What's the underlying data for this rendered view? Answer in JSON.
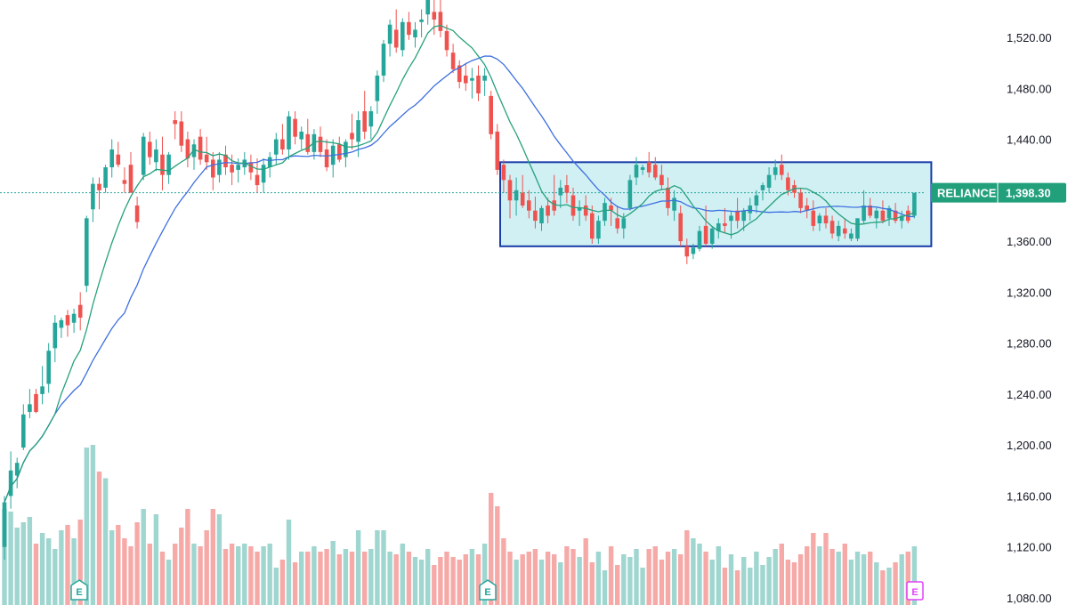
{
  "colors": {
    "up": "#26a69a",
    "down": "#ef5350",
    "vol_up": "#9fd6d0",
    "vol_down": "#f6aaa8",
    "ma_fast": "#26a17b",
    "ma_slow": "#3d6fe0",
    "box_fill": "#cdeff3",
    "box_stroke": "#1a3ea8",
    "last_line": "#26a69a",
    "label_bg": "#22a07c",
    "earn_past": "#26a69a",
    "earn_future": "#e040fb"
  },
  "chart_data": {
    "type": "candlestick",
    "symbol": "RELIANCE",
    "last_price": "1,398.30",
    "y_ticks": [
      "1,520.00",
      "1,480.00",
      "1,440.00",
      "1,400.00",
      "1,360.00",
      "1,320.00",
      "1,280.00",
      "1,240.00",
      "1,200.00",
      "1,160.00",
      "1,120.00",
      "1,080.00"
    ],
    "ylim": [
      1078,
      1563
    ],
    "grid": false,
    "candles": [
      [
        1120,
        1160,
        1110,
        1155
      ],
      [
        1160,
        1195,
        1150,
        1180
      ],
      [
        1176,
        1190,
        1166,
        1186
      ],
      [
        1198,
        1232,
        1196,
        1224
      ],
      [
        1226,
        1244,
        1221,
        1232
      ],
      [
        1240,
        1244,
        1225,
        1226
      ],
      [
        1240,
        1262,
        1232,
        1246
      ],
      [
        1248,
        1280,
        1241,
        1274
      ],
      [
        1276,
        1302,
        1265,
        1296
      ],
      [
        1292,
        1300,
        1284,
        1298
      ],
      [
        1302,
        1306,
        1285,
        1294
      ],
      [
        1296,
        1307,
        1288,
        1303
      ],
      [
        1310,
        1320,
        1290,
        1300
      ],
      [
        1325,
        1380,
        1320,
        1378
      ],
      [
        1385,
        1410,
        1375,
        1405
      ],
      [
        1405,
        1410,
        1385,
        1400
      ],
      [
        1402,
        1420,
        1398,
        1418
      ],
      [
        1418,
        1440,
        1410,
        1432
      ],
      [
        1428,
        1438,
        1418,
        1420
      ],
      [
        1408,
        1418,
        1398,
        1405
      ],
      [
        1420,
        1430,
        1398,
        1398
      ],
      [
        1388,
        1395,
        1370,
        1375
      ],
      [
        1412,
        1445,
        1408,
        1442
      ],
      [
        1438,
        1446,
        1420,
        1426
      ],
      [
        1422,
        1440,
        1415,
        1432
      ],
      [
        1428,
        1442,
        1400,
        1412
      ],
      [
        1412,
        1430,
        1405,
        1428
      ],
      [
        1455,
        1462,
        1440,
        1452
      ],
      [
        1454,
        1462,
        1430,
        1435
      ],
      [
        1440,
        1446,
        1418,
        1425
      ],
      [
        1426,
        1440,
        1416,
        1436
      ],
      [
        1442,
        1448,
        1420,
        1424
      ],
      [
        1428,
        1442,
        1416,
        1422
      ],
      [
        1424,
        1430,
        1400,
        1410
      ],
      [
        1412,
        1430,
        1406,
        1424
      ],
      [
        1428,
        1435,
        1412,
        1418
      ],
      [
        1420,
        1428,
        1404,
        1414
      ],
      [
        1416,
        1425,
        1406,
        1420
      ],
      [
        1418,
        1430,
        1412,
        1424
      ],
      [
        1422,
        1428,
        1408,
        1414
      ],
      [
        1412,
        1425,
        1398,
        1404
      ],
      [
        1406,
        1425,
        1398,
        1420
      ],
      [
        1418,
        1430,
        1410,
        1426
      ],
      [
        1428,
        1445,
        1420,
        1440
      ],
      [
        1440,
        1452,
        1428,
        1432
      ],
      [
        1432,
        1462,
        1424,
        1458
      ],
      [
        1456,
        1462,
        1436,
        1442
      ],
      [
        1440,
        1450,
        1432,
        1446
      ],
      [
        1444,
        1456,
        1428,
        1430
      ],
      [
        1430,
        1448,
        1424,
        1444
      ],
      [
        1442,
        1450,
        1426,
        1430
      ],
      [
        1432,
        1440,
        1415,
        1418
      ],
      [
        1420,
        1440,
        1410,
        1435
      ],
      [
        1436,
        1442,
        1422,
        1424
      ],
      [
        1426,
        1440,
        1418,
        1438
      ],
      [
        1445,
        1460,
        1432,
        1440
      ],
      [
        1438,
        1462,
        1426,
        1455
      ],
      [
        1462,
        1478,
        1440,
        1446
      ],
      [
        1450,
        1466,
        1440,
        1462
      ],
      [
        1470,
        1494,
        1460,
        1490
      ],
      [
        1490,
        1518,
        1485,
        1515
      ],
      [
        1515,
        1534,
        1505,
        1530
      ],
      [
        1526,
        1542,
        1508,
        1512
      ],
      [
        1510,
        1535,
        1505,
        1532
      ],
      [
        1532,
        1540,
        1518,
        1522
      ],
      [
        1520,
        1532,
        1512,
        1526
      ],
      [
        1532,
        1542,
        1520,
        1534
      ],
      [
        1538,
        1555,
        1530,
        1550
      ],
      [
        1540,
        1552,
        1522,
        1534
      ],
      [
        1540,
        1563,
        1520,
        1525
      ],
      [
        1525,
        1530,
        1505,
        1510
      ],
      [
        1508,
        1515,
        1492,
        1495
      ],
      [
        1498,
        1502,
        1480,
        1485
      ],
      [
        1490,
        1500,
        1478,
        1484
      ],
      [
        1486,
        1496,
        1472,
        1488
      ],
      [
        1490,
        1498,
        1470,
        1476
      ],
      [
        1486,
        1496,
        1474,
        1490
      ],
      [
        1474,
        1478,
        1440,
        1444
      ],
      [
        1446,
        1452,
        1412,
        1416
      ],
      [
        1420,
        1424,
        1398,
        1408
      ],
      [
        1408,
        1412,
        1378,
        1392
      ],
      [
        1392,
        1410,
        1380,
        1400
      ],
      [
        1398,
        1412,
        1386,
        1388
      ],
      [
        1392,
        1400,
        1378,
        1384
      ],
      [
        1384,
        1395,
        1370,
        1376
      ],
      [
        1374,
        1388,
        1368,
        1386
      ],
      [
        1388,
        1394,
        1374,
        1380
      ],
      [
        1392,
        1412,
        1380,
        1384
      ],
      [
        1396,
        1408,
        1386,
        1402
      ],
      [
        1404,
        1412,
        1390,
        1398
      ],
      [
        1396,
        1402,
        1376,
        1380
      ],
      [
        1384,
        1392,
        1372,
        1386
      ],
      [
        1388,
        1396,
        1376,
        1380
      ],
      [
        1382,
        1388,
        1358,
        1362
      ],
      [
        1362,
        1380,
        1358,
        1376
      ],
      [
        1376,
        1394,
        1372,
        1390
      ],
      [
        1388,
        1394,
        1372,
        1384
      ],
      [
        1378,
        1388,
        1366,
        1370
      ],
      [
        1370,
        1382,
        1362,
        1378
      ],
      [
        1386,
        1412,
        1384,
        1408
      ],
      [
        1410,
        1426,
        1404,
        1420
      ],
      [
        1416,
        1420,
        1412,
        1418
      ],
      [
        1422,
        1430,
        1410,
        1414
      ],
      [
        1420,
        1426,
        1408,
        1410
      ],
      [
        1412,
        1420,
        1400,
        1404
      ],
      [
        1402,
        1410,
        1380,
        1386
      ],
      [
        1384,
        1400,
        1376,
        1394
      ],
      [
        1382,
        1388,
        1356,
        1360
      ],
      [
        1356,
        1362,
        1342,
        1348
      ],
      [
        1350,
        1358,
        1346,
        1355
      ],
      [
        1354,
        1372,
        1352,
        1368
      ],
      [
        1372,
        1388,
        1356,
        1358
      ],
      [
        1358,
        1372,
        1354,
        1370
      ],
      [
        1368,
        1378,
        1362,
        1374
      ],
      [
        1374,
        1386,
        1366,
        1372
      ],
      [
        1376,
        1384,
        1362,
        1380
      ],
      [
        1384,
        1394,
        1370,
        1376
      ],
      [
        1376,
        1386,
        1368,
        1384
      ],
      [
        1382,
        1394,
        1376,
        1388
      ],
      [
        1388,
        1400,
        1382,
        1396
      ],
      [
        1400,
        1406,
        1392,
        1404
      ],
      [
        1402,
        1418,
        1398,
        1412
      ],
      [
        1412,
        1424,
        1408,
        1418
      ],
      [
        1420,
        1428,
        1408,
        1412
      ],
      [
        1410,
        1414,
        1396,
        1400
      ],
      [
        1404,
        1408,
        1394,
        1398
      ],
      [
        1398,
        1402,
        1382,
        1386
      ],
      [
        1388,
        1394,
        1378,
        1384
      ],
      [
        1384,
        1392,
        1368,
        1372
      ],
      [
        1374,
        1382,
        1368,
        1380
      ],
      [
        1380,
        1386,
        1370,
        1374
      ],
      [
        1376,
        1380,
        1362,
        1366
      ],
      [
        1364,
        1376,
        1360,
        1372
      ],
      [
        1370,
        1378,
        1362,
        1366
      ],
      [
        1362,
        1370,
        1360,
        1366
      ],
      [
        1362,
        1378,
        1360,
        1378
      ],
      [
        1376,
        1400,
        1374,
        1388
      ],
      [
        1388,
        1394,
        1378,
        1380
      ],
      [
        1378,
        1386,
        1370,
        1384
      ],
      [
        1384,
        1392,
        1374,
        1376
      ],
      [
        1378,
        1388,
        1372,
        1386
      ],
      [
        1384,
        1390,
        1374,
        1376
      ],
      [
        1376,
        1384,
        1370,
        1380
      ],
      [
        1384,
        1388,
        1374,
        1376
      ],
      [
        1380,
        1398,
        1378,
        1398
      ]
    ],
    "volume": [
      72,
      70,
      58,
      62,
      66,
      46,
      54,
      50,
      42,
      56,
      60,
      50,
      64,
      118,
      120,
      100,
      95,
      56,
      60,
      50,
      44,
      62,
      72,
      46,
      68,
      40,
      34,
      46,
      58,
      72,
      46,
      44,
      56,
      72,
      68,
      42,
      46,
      44,
      46,
      44,
      40,
      44,
      46,
      28,
      34,
      64,
      32,
      40,
      40,
      44,
      40,
      42,
      48,
      38,
      42,
      40,
      56,
      40,
      42,
      56,
      56,
      40,
      38,
      46,
      40,
      36,
      34,
      42,
      30,
      36,
      40,
      36,
      34,
      38,
      42,
      38,
      46,
      84,
      74,
      50,
      40,
      34,
      38,
      40,
      42,
      34,
      40,
      38,
      32,
      44,
      42,
      36,
      50,
      32,
      40,
      26,
      44,
      30,
      38,
      36,
      42,
      28,
      42,
      44,
      34,
      40,
      42,
      38,
      56,
      50,
      46,
      40,
      34,
      44,
      28,
      38,
      26,
      36,
      28,
      40,
      30,
      36,
      42,
      46,
      34,
      32,
      38,
      44,
      54,
      44,
      54,
      42,
      40,
      46,
      34,
      40,
      38,
      40,
      32,
      26,
      28,
      32,
      38,
      40,
      44
    ]
  },
  "overlay": {
    "box_range": [
      1356,
      1422
    ]
  },
  "earnings": [
    {
      "label": "E",
      "kind": "past"
    },
    {
      "label": "E",
      "kind": "past"
    },
    {
      "label": "E",
      "kind": "future"
    }
  ]
}
